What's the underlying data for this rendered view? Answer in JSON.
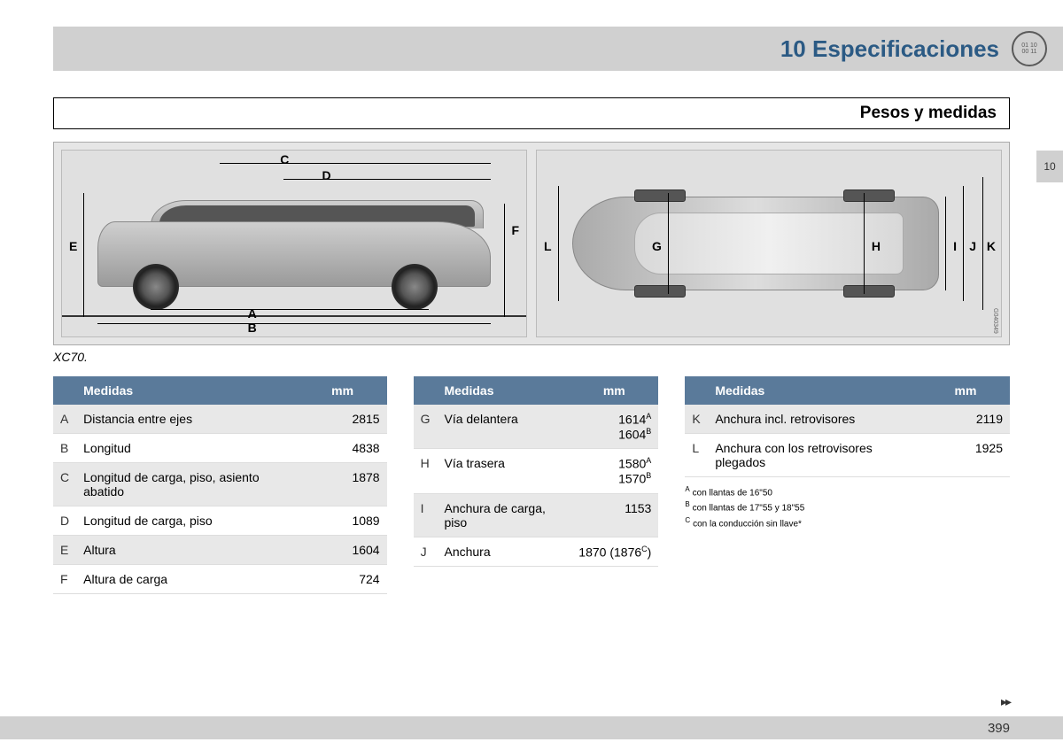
{
  "header": {
    "chapter_number": "10",
    "chapter_title": "Especificaciones",
    "badge_line1": "01 10",
    "badge_line2": "00 11"
  },
  "subheader": "Pesos y medidas",
  "side_tab": "10",
  "diagram": {
    "caption": "XC70.",
    "image_ref": "G040349",
    "side_labels": {
      "A": "A",
      "B": "B",
      "C": "C",
      "D": "D",
      "E": "E",
      "F": "F"
    },
    "top_labels": {
      "G": "G",
      "H": "H",
      "I": "I",
      "J": "J",
      "K": "K",
      "L": "L"
    }
  },
  "tables": {
    "header_medidas": "Medidas",
    "header_mm": "mm",
    "table1": [
      {
        "letter": "A",
        "label": "Distancia entre ejes",
        "value": "2815"
      },
      {
        "letter": "B",
        "label": "Longitud",
        "value": "4838"
      },
      {
        "letter": "C",
        "label": "Longitud de carga, piso, asiento abatido",
        "value": "1878"
      },
      {
        "letter": "D",
        "label": "Longitud de carga, piso",
        "value": "1089"
      },
      {
        "letter": "E",
        "label": "Altura",
        "value": "1604"
      },
      {
        "letter": "F",
        "label": "Altura de carga",
        "value": "724"
      }
    ],
    "table2": [
      {
        "letter": "G",
        "label": "Vía delantera",
        "value_lines": [
          {
            "v": "1614",
            "sup": "A"
          },
          {
            "v": "1604",
            "sup": "B"
          }
        ]
      },
      {
        "letter": "H",
        "label": "Vía trasera",
        "value_lines": [
          {
            "v": "1580",
            "sup": "A"
          },
          {
            "v": "1570",
            "sup": "B"
          }
        ]
      },
      {
        "letter": "I",
        "label": "Anchura de carga, piso",
        "value": "1153"
      },
      {
        "letter": "J",
        "label": "Anchura",
        "value_complex": {
          "main": "1870",
          "paren": "1876",
          "sup": "C"
        }
      }
    ],
    "table3": [
      {
        "letter": "K",
        "label": "Anchura incl. retrovisores",
        "value": "2119"
      },
      {
        "letter": "L",
        "label": "Anchura con los retrovisores plegados",
        "value": "1925"
      }
    ]
  },
  "footnotes": [
    {
      "sup": "A",
      "text": "con llantas de 16\"50"
    },
    {
      "sup": "B",
      "text": "con llantas de 17\"55 y 18\"55"
    },
    {
      "sup": "C",
      "text": "con la conducción sin llave*"
    }
  ],
  "footer": {
    "page_number": "399",
    "continue": "▸▸"
  },
  "colors": {
    "header_bg": "#d0d0d0",
    "accent": "#2b5a84",
    "table_header": "#5a7a9a",
    "row_alt": "#e8e8e8"
  }
}
